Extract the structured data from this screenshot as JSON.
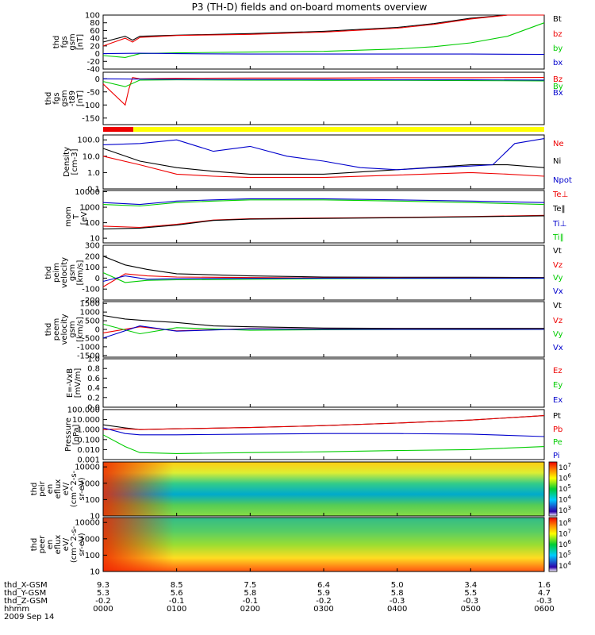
{
  "title": "P3 (TH-D) fields and on-board moments overview",
  "date_label": "2009 Sep 14",
  "ephemeris": {
    "rows": [
      {
        "label": "thd_X-GSM",
        "values": [
          "9.3",
          "8.5",
          "7.5",
          "6.4",
          "5.0",
          "3.4",
          "1.6"
        ]
      },
      {
        "label": "thd_Y-GSM",
        "values": [
          "5.3",
          "5.6",
          "5.8",
          "5.9",
          "5.8",
          "5.5",
          "4.7"
        ]
      },
      {
        "label": "thd_Z-GSM",
        "values": [
          "-0.2",
          "-0.1",
          "-0.1",
          "-0.2",
          "-0.3",
          "-0.3",
          "-0.3"
        ]
      },
      {
        "label": "hhmm",
        "values": [
          "0000",
          "0100",
          "0200",
          "0300",
          "0400",
          "0500",
          "0600"
        ]
      }
    ]
  },
  "colors": {
    "black": "#000000",
    "red": "#ee0000",
    "green": "#00cc00",
    "blue": "#0000cc",
    "yellow": "#ffff00"
  },
  "chart_data": [
    {
      "type": "line",
      "ylabel": [
        "thd",
        "fgs",
        "gsm",
        "[nT]"
      ],
      "ylim": [
        -40,
        100
      ],
      "yticks": [
        "100",
        "80",
        "60",
        "40",
        "20",
        "0",
        "-20",
        "-40"
      ],
      "series": [
        {
          "name": "Bt",
          "color": "black",
          "x": [
            0,
            0.3,
            0.4,
            0.5,
            1,
            2,
            3,
            4,
            4.5,
            5,
            5.5,
            6
          ],
          "y": [
            30,
            45,
            35,
            45,
            48,
            52,
            58,
            68,
            78,
            92,
            105,
            120
          ]
        },
        {
          "name": "bz",
          "color": "red",
          "x": [
            0,
            0.3,
            0.4,
            0.5,
            1,
            2,
            3,
            4,
            4.5,
            5,
            5.5,
            6
          ],
          "y": [
            20,
            40,
            30,
            42,
            47,
            50,
            56,
            66,
            76,
            90,
            103,
            118
          ]
        },
        {
          "name": "by",
          "color": "green",
          "x": [
            0,
            0.3,
            0.5,
            1,
            2,
            3,
            4,
            4.5,
            5,
            5.5,
            6
          ],
          "y": [
            -5,
            -10,
            0,
            2,
            4,
            6,
            12,
            18,
            28,
            45,
            80
          ]
        },
        {
          "name": "bx",
          "color": "blue",
          "x": [
            0,
            0.5,
            1,
            2,
            3,
            4,
            5,
            6
          ],
          "y": [
            0,
            1,
            0,
            -1,
            -1,
            -1,
            -1,
            -2
          ]
        }
      ]
    },
    {
      "type": "line",
      "ylabel": [
        "thd",
        "fgs",
        "gsm",
        "-t89",
        "[nT]"
      ],
      "ylim": [
        -175,
        25
      ],
      "yticks": [
        "0",
        "-50",
        "-100",
        "-150"
      ],
      "series": [
        {
          "name": "Bz",
          "color": "red",
          "x": [
            0,
            0.3,
            0.35,
            0.4,
            0.5,
            1,
            2,
            3,
            4,
            5,
            6
          ],
          "y": [
            -20,
            -100,
            -40,
            5,
            0,
            2,
            3,
            3,
            4,
            4,
            5
          ]
        },
        {
          "name": "By",
          "color": "green",
          "x": [
            0,
            0.3,
            0.5,
            1,
            2,
            3,
            4,
            5,
            6
          ],
          "y": [
            -10,
            -30,
            -5,
            -4,
            -5,
            -6,
            -6,
            -7,
            -8
          ]
        },
        {
          "name": "Bx",
          "color": "blue",
          "x": [
            0,
            1,
            2,
            3,
            4,
            5,
            6
          ],
          "y": [
            0,
            -2,
            -3,
            -3,
            -4,
            -4,
            -5
          ]
        }
      ]
    },
    {
      "type": "line",
      "ylabel": [
        "Density",
        "[cm-3]"
      ],
      "yscale": "log",
      "ylim": [
        0.1,
        200
      ],
      "yticks": [
        "100.0",
        "10.0",
        "1.0",
        "0.1"
      ],
      "series": [
        {
          "name": "Ne",
          "color": "red",
          "x": [
            0,
            0.5,
            1,
            1.5,
            2,
            3,
            4,
            5,
            5.5,
            6
          ],
          "y": [
            10,
            3,
            0.8,
            0.6,
            0.5,
            0.5,
            0.7,
            1.0,
            0.8,
            0.6
          ]
        },
        {
          "name": "Ni",
          "color": "black",
          "x": [
            0,
            0.5,
            1,
            1.5,
            2,
            3,
            4,
            5,
            5.5,
            6
          ],
          "y": [
            30,
            5,
            2,
            1.2,
            0.8,
            0.8,
            1.5,
            3.0,
            3.0,
            2.0
          ]
        },
        {
          "name": "Npot",
          "color": "blue",
          "x": [
            0,
            0.5,
            1,
            1.5,
            2,
            2.5,
            3,
            3.5,
            4,
            4.5,
            5,
            5.3,
            5.6,
            6
          ],
          "y": [
            50,
            60,
            100,
            20,
            40,
            10,
            5,
            2,
            1.5,
            2,
            2.5,
            3,
            60,
            120
          ]
        }
      ]
    },
    {
      "type": "line",
      "ylabel": [
        "mom",
        "T",
        "[eV]"
      ],
      "yscale": "log",
      "ylim": [
        5,
        12000
      ],
      "yticks": [
        "10000",
        "1000",
        "100",
        "10"
      ],
      "series": [
        {
          "name": "Te⊥",
          "color": "red",
          "x": [
            0,
            0.5,
            1,
            1.5,
            2,
            3,
            4,
            5,
            6
          ],
          "y": [
            60,
            50,
            80,
            150,
            180,
            200,
            220,
            250,
            300
          ]
        },
        {
          "name": "Te‖",
          "color": "black",
          "x": [
            0,
            0.5,
            1,
            1.5,
            2,
            3,
            4,
            5,
            6
          ],
          "y": [
            40,
            45,
            70,
            140,
            170,
            190,
            210,
            240,
            280
          ]
        },
        {
          "name": "Ti⊥",
          "color": "blue",
          "x": [
            0,
            0.5,
            1,
            1.5,
            2,
            3,
            4,
            5,
            6
          ],
          "y": [
            2000,
            1500,
            2500,
            3000,
            3500,
            3500,
            3000,
            2500,
            2000
          ]
        },
        {
          "name": "Ti‖",
          "color": "green",
          "x": [
            0,
            0.5,
            1,
            1.5,
            2,
            3,
            4,
            5,
            6
          ],
          "y": [
            1500,
            1200,
            2000,
            2500,
            3000,
            3000,
            2500,
            2000,
            1500
          ]
        }
      ]
    },
    {
      "type": "line",
      "ylabel": [
        "thd",
        "peim",
        "velocity",
        "gsm",
        "[km/s]"
      ],
      "ylim": [
        -200,
        300
      ],
      "yticks": [
        "300",
        "200",
        "100",
        "0",
        "-100",
        "-200"
      ],
      "series": [
        {
          "name": "Vt",
          "color": "black",
          "x": [
            0,
            0.3,
            0.6,
            1,
            2,
            3,
            4,
            5,
            6
          ],
          "y": [
            200,
            120,
            80,
            40,
            20,
            10,
            8,
            8,
            5
          ]
        },
        {
          "name": "Vz",
          "color": "red",
          "x": [
            0,
            0.3,
            0.6,
            1,
            2,
            3,
            4,
            5,
            6
          ],
          "y": [
            -80,
            40,
            20,
            10,
            5,
            2,
            2,
            1,
            0
          ]
        },
        {
          "name": "Vy",
          "color": "green",
          "x": [
            0,
            0.3,
            0.6,
            1,
            2,
            3,
            4,
            5,
            6
          ],
          "y": [
            50,
            -40,
            -20,
            -15,
            -10,
            -5,
            -3,
            -2,
            -2
          ]
        },
        {
          "name": "Vx",
          "color": "blue",
          "x": [
            0,
            0.3,
            0.6,
            1,
            2,
            3,
            4,
            5,
            6
          ],
          "y": [
            -30,
            20,
            -10,
            -5,
            -2,
            0,
            0,
            0,
            0
          ]
        }
      ]
    },
    {
      "type": "line",
      "ylabel": [
        "thd",
        "peem",
        "velocity",
        "gsm",
        "[km/s]"
      ],
      "ylim": [
        -1600,
        1600
      ],
      "yticks": [
        "1500",
        "1000",
        "500",
        "0",
        "-500",
        "-1000",
        "-1500"
      ],
      "series": [
        {
          "name": "Vt",
          "color": "black",
          "x": [
            0,
            0.3,
            0.6,
            1,
            1.5,
            2,
            3,
            4,
            5,
            6
          ],
          "y": [
            800,
            600,
            500,
            400,
            200,
            150,
            80,
            60,
            60,
            60
          ]
        },
        {
          "name": "Vz",
          "color": "red",
          "x": [
            0,
            0.5,
            1,
            2,
            3,
            4,
            5,
            6
          ],
          "y": [
            -200,
            150,
            -80,
            40,
            20,
            10,
            10,
            5
          ]
        },
        {
          "name": "Vy",
          "color": "green",
          "x": [
            0,
            0.5,
            1,
            2,
            3,
            4,
            5,
            6
          ],
          "y": [
            300,
            -250,
            100,
            -50,
            -20,
            -10,
            -10,
            -5
          ]
        },
        {
          "name": "Vx",
          "color": "blue",
          "x": [
            0,
            0.5,
            1,
            2,
            3,
            4,
            5,
            6
          ],
          "y": [
            -500,
            200,
            -100,
            30,
            10,
            5,
            5,
            0
          ]
        }
      ]
    },
    {
      "type": "line",
      "ylabel": [
        "E=-VxB",
        "[mV/m]"
      ],
      "ylim": [
        0,
        1
      ],
      "yticks": [
        "1.0",
        "0.8",
        "0.6",
        "0.4",
        "0.2",
        "0.0"
      ],
      "series": [
        {
          "name": "Ez",
          "color": "red",
          "x": [],
          "y": []
        },
        {
          "name": "Ey",
          "color": "green",
          "x": [],
          "y": []
        },
        {
          "name": "Ex",
          "color": "blue",
          "x": [],
          "y": []
        }
      ]
    },
    {
      "type": "line",
      "ylabel": [
        "Pressure",
        "[nPa]"
      ],
      "yscale": "log",
      "ylim": [
        0.001,
        100
      ],
      "yticks": [
        "100.000",
        "10.000",
        "1.000",
        "0.100",
        "0.010",
        "0.001"
      ],
      "series": [
        {
          "name": "Pt",
          "color": "black",
          "x": [
            0,
            0.3,
            0.5,
            1,
            2,
            3,
            4,
            5,
            6
          ],
          "y": [
            3,
            1.5,
            1,
            1.2,
            1.6,
            2.5,
            4.5,
            9,
            25
          ]
        },
        {
          "name": "Pb",
          "color": "red",
          "x": [
            0,
            0.3,
            0.5,
            1,
            2,
            3,
            4,
            5,
            6
          ],
          "y": [
            1,
            1.2,
            1,
            1.2,
            1.6,
            2.5,
            4.5,
            9,
            25
          ]
        },
        {
          "name": "Pe",
          "color": "green",
          "x": [
            0,
            0.3,
            0.5,
            1,
            2,
            3,
            4,
            5,
            6
          ],
          "y": [
            0.3,
            0.02,
            0.005,
            0.004,
            0.005,
            0.006,
            0.008,
            0.01,
            0.02
          ]
        },
        {
          "name": "Pi",
          "color": "blue",
          "x": [
            0,
            0.3,
            0.5,
            1,
            2,
            3,
            4,
            5,
            6
          ],
          "y": [
            1.5,
            0.4,
            0.3,
            0.3,
            0.35,
            0.4,
            0.4,
            0.35,
            0.2
          ]
        }
      ]
    },
    {
      "type": "heatmap",
      "ylabel": [
        "thd",
        "peir",
        "en",
        "eflux",
        "eV/",
        "(cm^2-s-",
        "sr-eV)"
      ],
      "yscale": "log",
      "ylim": [
        10,
        20000
      ],
      "yticks": [
        "10000",
        "1000",
        "100",
        "10"
      ],
      "colorbar_ticks": [
        "10^7",
        "10^6",
        "10^5",
        "10^4",
        "10^3"
      ]
    },
    {
      "type": "heatmap",
      "ylabel": [
        "thd",
        "peer",
        "en",
        "eflux",
        "eV/",
        "(cm^2-s-",
        "sr-eV)"
      ],
      "yscale": "log",
      "ylim": [
        10,
        20000
      ],
      "yticks": [
        "10000",
        "1000",
        "100",
        "10"
      ],
      "colorbar_ticks": [
        "10^8",
        "10^7",
        "10^6",
        "10^5",
        "10^4"
      ]
    }
  ]
}
